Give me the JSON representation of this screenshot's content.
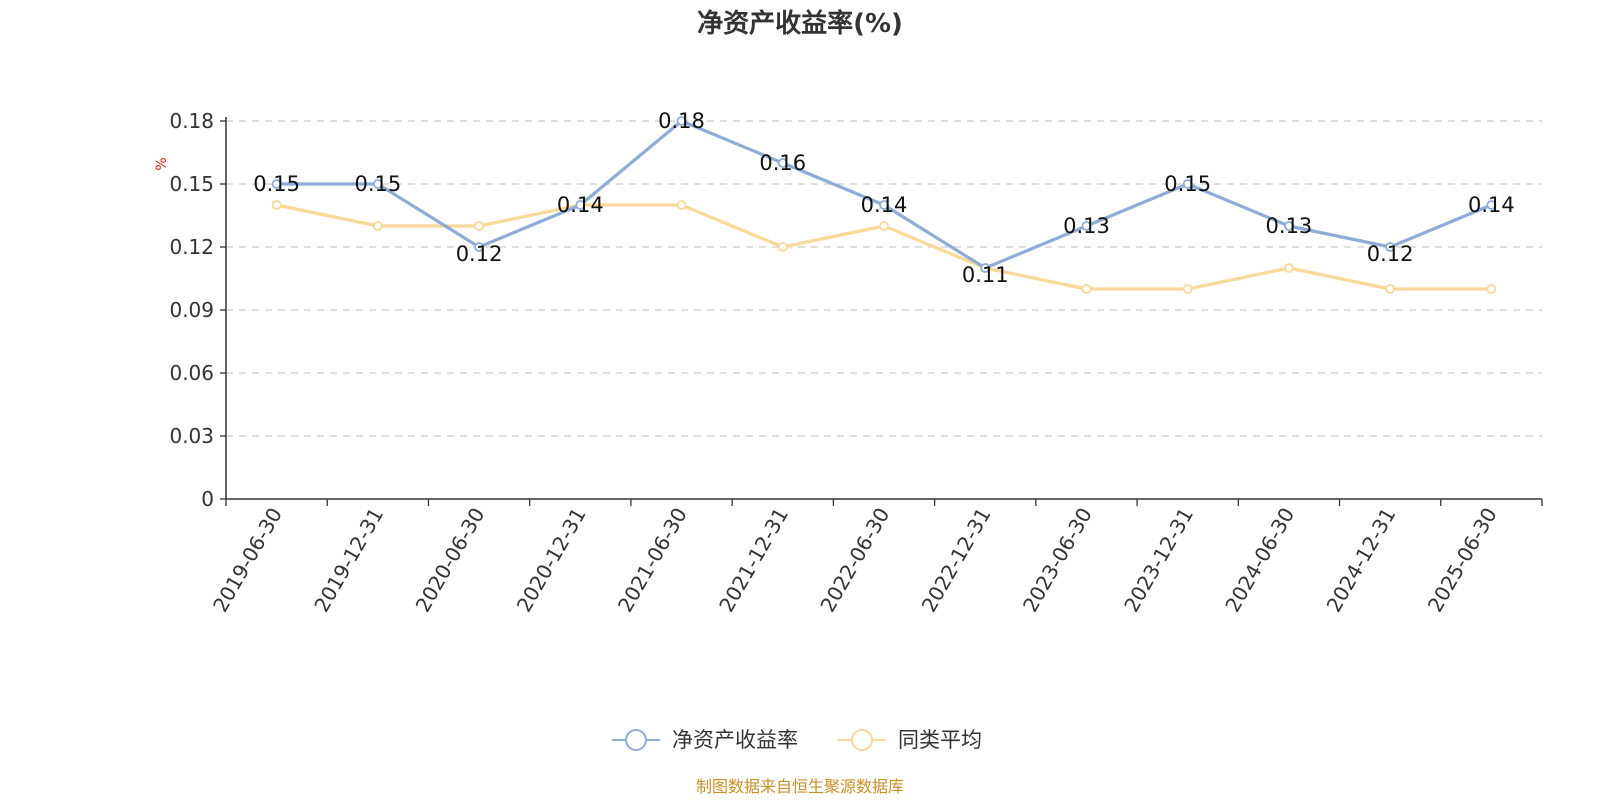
{
  "chart_data": {
    "type": "line",
    "title": "净资产收益率(%)",
    "ylabel": "%",
    "ylim": [
      0,
      0.18
    ],
    "yticks": [
      "0",
      "0.03",
      "0.06",
      "0.09",
      "0.12",
      "0.15",
      "0.18"
    ],
    "grid": true,
    "legend_position": "bottom",
    "categories": [
      "2019-06-30",
      "2019-12-31",
      "2020-06-30",
      "2020-12-31",
      "2021-06-30",
      "2021-12-31",
      "2022-06-30",
      "2022-12-31",
      "2023-06-30",
      "2023-12-31",
      "2024-06-30",
      "2024-12-31",
      "2025-06-30"
    ],
    "series": [
      {
        "name": "净资产收益率",
        "color": "#8eacd6",
        "values": [
          0.15,
          0.15,
          0.12,
          0.14,
          0.18,
          0.16,
          0.14,
          0.11,
          0.13,
          0.15,
          0.13,
          0.12,
          0.14
        ],
        "labels": [
          "0.15",
          "0.15",
          "0.12",
          "0.14",
          "0.18",
          "0.16",
          "0.14",
          "0.11",
          "0.13",
          "0.15",
          "0.13",
          "0.12",
          "0.14"
        ]
      },
      {
        "name": "同类平均",
        "color": "#fad898",
        "values": [
          0.14,
          0.13,
          0.13,
          0.14,
          0.14,
          0.12,
          0.13,
          0.11,
          0.1,
          0.1,
          0.11,
          0.1,
          0.1
        ]
      }
    ],
    "source": "制图数据来自恒生聚源数据库"
  }
}
